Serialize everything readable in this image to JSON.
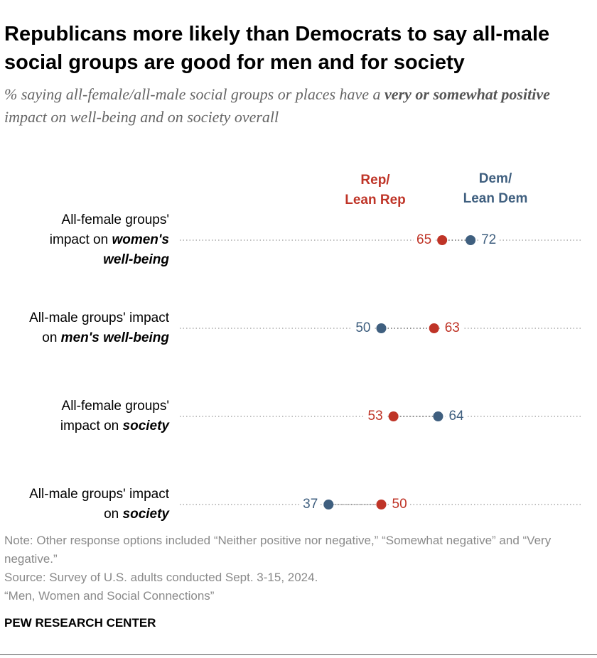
{
  "chart_data": {
    "type": "dot",
    "title": "Republicans more likely than Democrats to say all-male social groups are good for men and for society",
    "subtitle": [
      "% saying all-female/all-male social groups or places have a ",
      "very or somewhat positive",
      " impact on well-being and on society overall"
    ],
    "categories": [
      [
        "All-female groups' impact on ",
        "women's well-being"
      ],
      [
        "All-male groups' impact on ",
        "men's well-being"
      ],
      [
        "All-female groups' impact on ",
        "society"
      ],
      [
        "All-male groups' impact on ",
        "society"
      ]
    ],
    "series": [
      {
        "name": "Rep/\nLean Rep",
        "color": "#bf3427",
        "values": [
          65,
          63,
          53,
          50
        ]
      },
      {
        "name": "Dem/\nLean Dem",
        "color": "#3f5f7f",
        "values": [
          72,
          50,
          64,
          37
        ]
      }
    ],
    "xlim": [
      0,
      100
    ],
    "notes": [
      "Note: Other response options included “Neither positive nor negative,” “Somewhat negative” and “Very negative.”",
      "Source: Survey of U.S. adults conducted Sept. 3-15, 2024.",
      "“Men, Women and Social Connections”"
    ],
    "footer": "PEW RESEARCH CENTER"
  }
}
